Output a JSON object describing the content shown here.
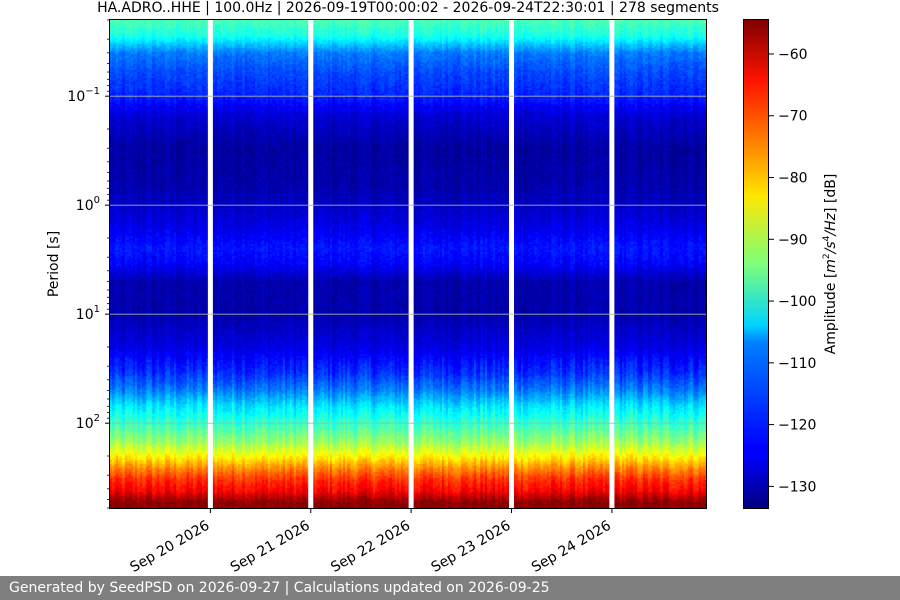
{
  "chart_data": {
    "type": "heatmap",
    "title": "HA.ADRO..HHE | 100.0Hz | 2026-09-19T00:00:02 - 2026-09-24T22:30:01 | 278 segments",
    "xlabel": "",
    "ylabel": "Period [s]",
    "y_scale": "log",
    "y_inverted": true,
    "ylim": [
      0.02,
      600
    ],
    "x_range": [
      "2026-09-19T00:00:02",
      "2026-09-24T22:30:01"
    ],
    "x_ticks": [
      "Sep 20 2026",
      "Sep 21 2026",
      "Sep 22 2026",
      "Sep 23 2026",
      "Sep 24 2026"
    ],
    "y_ticks": [
      {
        "value": 0.1,
        "base": "10",
        "exp": "−1"
      },
      {
        "value": 1,
        "base": "10",
        "exp": "0"
      },
      {
        "value": 10,
        "base": "10",
        "exp": "1"
      },
      {
        "value": 100,
        "base": "10",
        "exp": "2"
      }
    ],
    "grid": "horizontal at major y ticks",
    "data_gaps": [
      "2026-09-20T00:00",
      "2026-09-21T00:00",
      "2026-09-22T00:00",
      "2026-09-23T00:00",
      "2026-09-24T00:00"
    ],
    "colormap": "jet",
    "colorbar": {
      "label": "Amplitude [m²/s⁴/Hz] [dB]",
      "label_parts": {
        "pre": "Amplitude [",
        "m": "m",
        "exp2": "2",
        "slash1": "/s",
        "exp4": "4",
        "hz": "/Hz",
        "post": "] [dB]"
      },
      "range": [
        -133.5,
        -54.5
      ],
      "ticks": [
        "−60",
        "−70",
        "−80",
        "−90",
        "−100",
        "−110",
        "−120",
        "−130"
      ],
      "tick_values": [
        -60,
        -70,
        -80,
        -90,
        -100,
        -110,
        -120,
        -130
      ]
    },
    "amplitude_profile_db": [
      {
        "period": 0.02,
        "db": -98
      },
      {
        "period": 0.028,
        "db": -102
      },
      {
        "period": 0.04,
        "db": -114
      },
      {
        "period": 0.06,
        "db": -118
      },
      {
        "period": 0.1,
        "db": -121
      },
      {
        "period": 0.15,
        "db": -127
      },
      {
        "period": 0.3,
        "db": -131
      },
      {
        "period": 0.7,
        "db": -130
      },
      {
        "period": 1.5,
        "db": -126
      },
      {
        "period": 2.5,
        "db": -122
      },
      {
        "period": 3.5,
        "db": -124
      },
      {
        "period": 5,
        "db": -130
      },
      {
        "period": 10,
        "db": -130
      },
      {
        "period": 20,
        "db": -126
      },
      {
        "period": 35,
        "db": -120
      },
      {
        "period": 50,
        "db": -114
      },
      {
        "period": 70,
        "db": -106
      },
      {
        "period": 100,
        "db": -100
      },
      {
        "period": 150,
        "db": -92
      },
      {
        "period": 200,
        "db": -84
      },
      {
        "period": 260,
        "db": -75
      },
      {
        "period": 330,
        "db": -68
      },
      {
        "period": 420,
        "db": -64
      },
      {
        "period": 520,
        "db": -56
      },
      {
        "period": 600,
        "db": -55
      }
    ]
  },
  "footer": {
    "text": "Generated by SeedPSD on 2026-09-27 | Calculations updated on 2026-09-25"
  }
}
